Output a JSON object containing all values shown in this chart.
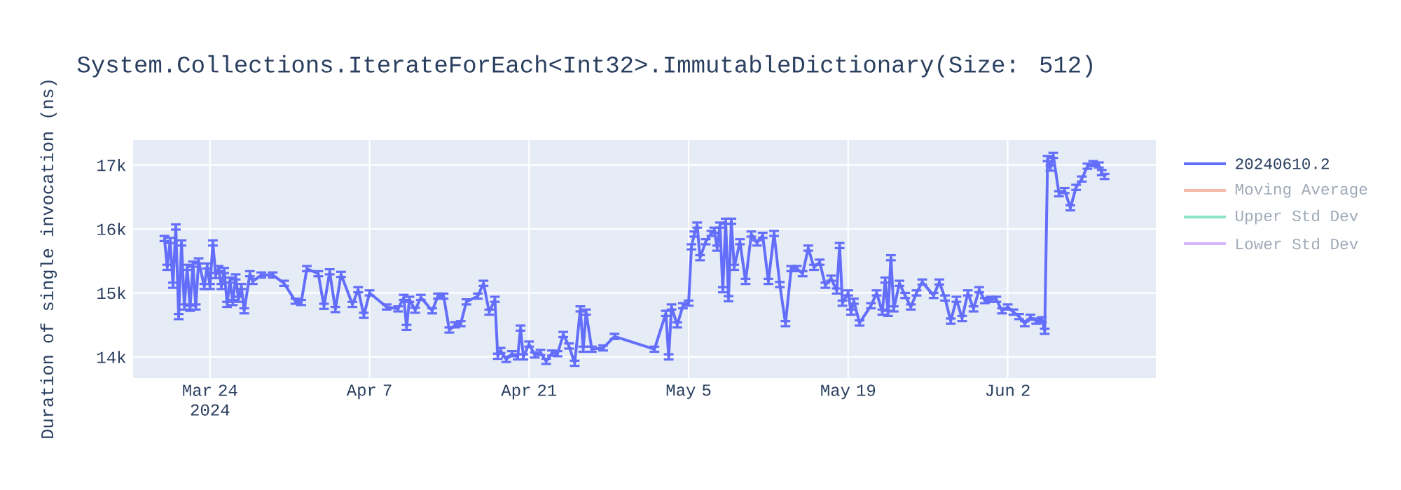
{
  "chart_data": {
    "type": "line",
    "title": "System.Collections.IterateForEach<Int32>.ImmutableDictionary(Size: 512)",
    "ylabel": "Duration of single invocation (ns)",
    "xlim": [
      "2024-03-17T06:00",
      "2024-06-15T00:00"
    ],
    "ylim": [
      13670,
      17390
    ],
    "xticks": [
      {
        "value": "2024-03-24",
        "label": "Mar 24 2024"
      },
      {
        "value": "2024-04-07",
        "label": "Apr 7"
      },
      {
        "value": "2024-04-21",
        "label": "Apr 21"
      },
      {
        "value": "2024-05-05",
        "label": "May 5"
      },
      {
        "value": "2024-05-19",
        "label": "May 19"
      },
      {
        "value": "2024-06-02",
        "label": "Jun 2"
      }
    ],
    "yticks": [
      {
        "value": 14000,
        "label": "14k"
      },
      {
        "value": 15000,
        "label": "15k"
      },
      {
        "value": 16000,
        "label": "16k"
      },
      {
        "value": 17000,
        "label": "17k"
      }
    ],
    "grid": true,
    "legend": "right",
    "marker": "none",
    "line_style": "solid",
    "x": [
      "2024-03-20T00:00",
      "2024-03-20T06:00",
      "2024-03-20T12:00",
      "2024-03-20T18:00",
      "2024-03-21T00:00",
      "2024-03-21T06:00",
      "2024-03-21T12:00",
      "2024-03-21T18:00",
      "2024-03-22T00:00",
      "2024-03-22T06:00",
      "2024-03-22T12:00",
      "2024-03-22T18:00",
      "2024-03-23T00:00",
      "2024-03-23T12:00",
      "2024-03-23T18:00",
      "2024-03-24T00:00",
      "2024-03-24T06:00",
      "2024-03-24T12:00",
      "2024-03-24T18:00",
      "2024-03-25T00:00",
      "2024-03-25T06:00",
      "2024-03-25T12:00",
      "2024-03-25T18:00",
      "2024-03-26T00:00",
      "2024-03-26T06:00",
      "2024-03-26T12:00",
      "2024-03-26T18:00",
      "2024-03-27T00:00",
      "2024-03-27T12:00",
      "2024-03-27T18:00",
      "2024-03-28T12:00",
      "2024-03-29T12:00",
      "2024-03-30T12:00",
      "2024-03-31T12:00",
      "2024-04-01T00:00",
      "2024-04-01T12:00",
      "2024-04-02T12:00",
      "2024-04-03T00:00",
      "2024-04-03T12:00",
      "2024-04-04T00:00",
      "2024-04-04T12:00",
      "2024-04-05T12:00",
      "2024-04-06T00:00",
      "2024-04-06T12:00",
      "2024-04-07T00:00",
      "2024-04-08T12:00",
      "2024-04-09T12:00",
      "2024-04-10T00:00",
      "2024-04-10T06:00",
      "2024-04-10T12:00",
      "2024-04-11T00:00",
      "2024-04-11T12:00",
      "2024-04-12T12:00",
      "2024-04-13T00:00",
      "2024-04-13T12:00",
      "2024-04-14T00:00",
      "2024-04-14T12:00",
      "2024-04-15T00:00",
      "2024-04-15T12:00",
      "2024-04-16T12:00",
      "2024-04-17T00:00",
      "2024-04-17T12:00",
      "2024-04-18T00:00",
      "2024-04-18T06:00",
      "2024-04-18T12:00",
      "2024-04-19T00:00",
      "2024-04-19T12:00",
      "2024-04-20T00:00",
      "2024-04-20T06:00",
      "2024-04-20T12:00",
      "2024-04-21T00:00",
      "2024-04-21T12:00",
      "2024-04-22T00:00",
      "2024-04-22T12:00",
      "2024-04-23T00:00",
      "2024-04-23T12:00",
      "2024-04-24T00:00",
      "2024-04-24T12:00",
      "2024-04-25T00:00",
      "2024-04-25T12:00",
      "2024-04-25T18:00",
      "2024-04-26T00:00",
      "2024-04-26T12:00",
      "2024-04-27T12:00",
      "2024-04-28T12:00",
      "2024-05-02T00:00",
      "2024-05-03T00:00",
      "2024-05-03T06:00",
      "2024-05-03T12:00",
      "2024-05-04T00:00",
      "2024-05-04T12:00",
      "2024-05-05T00:00",
      "2024-05-05T06:00",
      "2024-05-05T12:00",
      "2024-05-05T18:00",
      "2024-05-06T00:00",
      "2024-05-06T12:00",
      "2024-05-07T00:00",
      "2024-05-07T06:00",
      "2024-05-07T12:00",
      "2024-05-07T18:00",
      "2024-05-08T00:00",
      "2024-05-08T06:00",
      "2024-05-08T12:00",
      "2024-05-08T18:00",
      "2024-05-09T00:00",
      "2024-05-09T12:00",
      "2024-05-10T00:00",
      "2024-05-10T12:00",
      "2024-05-11T00:00",
      "2024-05-11T12:00",
      "2024-05-12T00:00",
      "2024-05-12T12:00",
      "2024-05-13T00:00",
      "2024-05-13T12:00",
      "2024-05-14T00:00",
      "2024-05-14T12:00",
      "2024-05-15T00:00",
      "2024-05-15T12:00",
      "2024-05-16T00:00",
      "2024-05-16T12:00",
      "2024-05-17T00:00",
      "2024-05-17T12:00",
      "2024-05-18T00:00",
      "2024-05-18T06:00",
      "2024-05-18T12:00",
      "2024-05-19T00:00",
      "2024-05-19T06:00",
      "2024-05-19T12:00",
      "2024-05-20T00:00",
      "2024-05-21T00:00",
      "2024-05-21T12:00",
      "2024-05-22T00:00",
      "2024-05-22T06:00",
      "2024-05-22T12:00",
      "2024-05-22T18:00",
      "2024-05-23T00:00",
      "2024-05-23T12:00",
      "2024-05-24T00:00",
      "2024-05-24T12:00",
      "2024-05-25T00:00",
      "2024-05-25T12:00",
      "2024-05-26T12:00",
      "2024-05-27T00:00",
      "2024-05-27T12:00",
      "2024-05-28T00:00",
      "2024-05-28T12:00",
      "2024-05-29T00:00",
      "2024-05-29T12:00",
      "2024-05-30T00:00",
      "2024-05-30T12:00",
      "2024-05-31T00:00",
      "2024-05-31T12:00",
      "2024-06-01T00:00",
      "2024-06-01T12:00",
      "2024-06-02T00:00",
      "2024-06-02T12:00",
      "2024-06-03T00:00",
      "2024-06-03T12:00",
      "2024-06-04T00:00",
      "2024-06-04T12:00",
      "2024-06-05T00:00",
      "2024-06-05T06:00",
      "2024-06-05T12:00",
      "2024-06-05T18:00",
      "2024-06-06T00:00",
      "2024-06-06T12:00",
      "2024-06-07T00:00",
      "2024-06-07T12:00",
      "2024-06-08T00:00",
      "2024-06-08T12:00",
      "2024-06-09T00:00",
      "2024-06-09T12:00",
      "2024-06-10T00:00",
      "2024-06-10T06:00",
      "2024-06-10T12:00"
    ],
    "series": [
      {
        "name": "20240610.2",
        "color": "#636efa",
        "values": [
          15850,
          15400,
          15820,
          15120,
          16030,
          14630,
          15780,
          14780,
          15400,
          14760,
          15450,
          14780,
          15500,
          15100,
          15420,
          15100,
          15780,
          15270,
          15380,
          15100,
          15350,
          14820,
          15200,
          14850,
          15250,
          14900,
          15100,
          14720,
          15300,
          15180,
          15280,
          15280,
          15150,
          14870,
          14850,
          15380,
          15300,
          14790,
          15330,
          14740,
          15290,
          14820,
          15050,
          14650,
          15000,
          14780,
          14750,
          14930,
          14460,
          14900,
          14730,
          14930,
          14720,
          14950,
          14950,
          14420,
          14500,
          14520,
          14860,
          14950,
          15150,
          14700,
          14900,
          14010,
          14100,
          13960,
          14050,
          14000,
          14450,
          14000,
          14200,
          14030,
          14070,
          13930,
          14060,
          14050,
          14350,
          14170,
          13900,
          14750,
          14120,
          14700,
          14120,
          14140,
          14320,
          14120,
          14680,
          14000,
          14780,
          14500,
          14800,
          14840,
          15720,
          15920,
          16060,
          15550,
          15800,
          15930,
          15980,
          15700,
          16060,
          15050,
          16120,
          14910,
          16120,
          15400,
          15800,
          15180,
          15920,
          15780,
          15900,
          15180,
          15930,
          15130,
          14520,
          15380,
          15380,
          15300,
          15700,
          15400,
          15480,
          15120,
          15230,
          15030,
          15740,
          14840,
          15000,
          14700,
          14870,
          14530,
          14800,
          15000,
          14700,
          15200,
          14680,
          15550,
          14750,
          15150,
          14960,
          14780,
          15000,
          15170,
          14960,
          15170,
          14920,
          14560,
          14900,
          14600,
          15000,
          14750,
          15050,
          14880,
          14900,
          14900,
          14720,
          14780,
          14700,
          14630,
          14520,
          14620,
          14560,
          14580,
          14400,
          17100,
          16950,
          17150,
          16550,
          16600,
          16330,
          16650,
          16780,
          16980,
          17020,
          17000,
          16880,
          16820
        ],
        "errors": [
          40,
          40,
          40,
          40,
          40,
          40,
          40,
          40,
          40,
          40,
          40,
          40,
          40,
          40,
          40,
          40,
          40,
          40,
          40,
          40,
          40,
          40,
          40,
          40,
          40,
          40,
          40,
          40,
          40,
          40,
          40,
          40,
          40,
          40,
          40,
          40,
          40,
          40,
          40,
          40,
          40,
          40,
          40,
          40,
          40,
          40,
          40,
          40,
          40,
          40,
          40,
          40,
          40,
          40,
          40,
          40,
          40,
          40,
          40,
          40,
          40,
          40,
          40,
          40,
          40,
          40,
          40,
          40,
          40,
          40,
          40,
          40,
          40,
          40,
          40,
          40,
          40,
          40,
          40,
          40,
          40,
          40,
          40,
          40,
          40,
          40,
          40,
          40,
          40,
          40,
          40,
          40,
          40,
          40,
          40,
          40,
          40,
          40,
          40,
          40,
          40,
          40,
          40,
          40,
          40,
          40,
          40,
          40,
          40,
          40,
          40,
          40,
          40,
          40,
          40,
          40,
          40,
          40,
          40,
          40,
          40,
          40,
          40,
          40,
          40,
          40,
          40,
          40,
          40,
          40,
          40,
          40,
          40,
          40,
          40,
          40,
          40,
          40,
          40,
          40,
          40,
          40,
          40,
          40,
          40,
          40,
          40,
          40,
          40,
          40,
          40,
          40,
          40,
          40,
          40,
          40,
          40,
          40,
          40,
          40,
          40,
          40,
          40,
          40,
          40,
          40,
          40,
          40,
          40,
          40,
          40,
          40,
          40,
          40,
          40,
          40
        ]
      },
      {
        "name": "Moving Average",
        "color": "#f7b8a9",
        "values": [
          null,
          null,
          null,
          null,
          null,
          null,
          null,
          null,
          null,
          null,
          null,
          null,
          null,
          null,
          null,
          null,
          null,
          null,
          null,
          null,
          null,
          null,
          null,
          null,
          null,
          null,
          null,
          null,
          null,
          null,
          null,
          null,
          null,
          null,
          null,
          null,
          null,
          null,
          null,
          null,
          null,
          null,
          null,
          null,
          null,
          null,
          null,
          null,
          null,
          null,
          null,
          null,
          null,
          null,
          null,
          null,
          null,
          null,
          null,
          null,
          null,
          null,
          null,
          null,
          null,
          null,
          null,
          null,
          null,
          null,
          null,
          null,
          null,
          null,
          null,
          null,
          null,
          null,
          null,
          null,
          null,
          null,
          null,
          null,
          null,
          null,
          null,
          null,
          null,
          null,
          null,
          null,
          null,
          null,
          null,
          null,
          null,
          null,
          null,
          null,
          null,
          null,
          null,
          null,
          null,
          null,
          null,
          null,
          null,
          null,
          null,
          null,
          null,
          null,
          null,
          null,
          null,
          null,
          null,
          null,
          null,
          null,
          null,
          null,
          null,
          null,
          null,
          null,
          null,
          null,
          null,
          null,
          null,
          null,
          null,
          null,
          null,
          null,
          null,
          null,
          null,
          null,
          null,
          null,
          null,
          null,
          null,
          null,
          null,
          null,
          null,
          null,
          null,
          null,
          null,
          null,
          null,
          null,
          null,
          null,
          null,
          null,
          null,
          null,
          null,
          null,
          null,
          null,
          null,
          null,
          null,
          null,
          null,
          null,
          null,
          null
        ]
      },
      {
        "name": "Upper Std Dev",
        "color": "#8be4c8",
        "values": [
          null,
          null,
          null,
          null,
          null,
          null,
          null,
          null,
          null,
          null,
          null,
          null,
          null,
          null,
          null,
          null,
          null,
          null,
          null,
          null,
          null,
          null,
          null,
          null,
          null,
          null,
          null,
          null,
          null,
          null,
          null,
          null,
          null,
          null,
          null,
          null,
          null,
          null,
          null,
          null,
          null,
          null,
          null,
          null,
          null,
          null,
          null,
          null,
          null,
          null,
          null,
          null,
          null,
          null,
          null,
          null,
          null,
          null,
          null,
          null,
          null,
          null,
          null,
          null,
          null,
          null,
          null,
          null,
          null,
          null,
          null,
          null,
          null,
          null,
          null,
          null,
          null,
          null,
          null,
          null,
          null,
          null,
          null,
          null,
          null,
          null,
          null,
          null,
          null,
          null,
          null,
          null,
          null,
          null,
          null,
          null,
          null,
          null,
          null,
          null,
          null,
          null,
          null,
          null,
          null,
          null,
          null,
          null,
          null,
          null,
          null,
          null,
          null,
          null,
          null,
          null,
          null,
          null,
          null,
          null,
          null,
          null,
          null,
          null,
          null,
          null,
          null,
          null,
          null,
          null,
          null,
          null,
          null,
          null,
          null,
          null,
          null,
          null,
          null,
          null,
          null,
          null,
          null,
          null,
          null,
          null,
          null,
          null,
          null,
          null,
          null,
          null,
          null,
          null,
          null,
          null,
          null,
          null,
          null,
          null,
          null,
          null,
          null,
          null,
          null,
          null,
          null,
          null,
          null,
          null,
          null,
          null,
          null,
          null,
          null,
          null
        ]
      },
      {
        "name": "Lower Std Dev",
        "color": "#d5b7fb",
        "values": [
          null,
          null,
          null,
          null,
          null,
          null,
          null,
          null,
          null,
          null,
          null,
          null,
          null,
          null,
          null,
          null,
          null,
          null,
          null,
          null,
          null,
          null,
          null,
          null,
          null,
          null,
          null,
          null,
          null,
          null,
          null,
          null,
          null,
          null,
          null,
          null,
          null,
          null,
          null,
          null,
          null,
          null,
          null,
          null,
          null,
          null,
          null,
          null,
          null,
          null,
          null,
          null,
          null,
          null,
          null,
          null,
          null,
          null,
          null,
          null,
          null,
          null,
          null,
          null,
          null,
          null,
          null,
          null,
          null,
          null,
          null,
          null,
          null,
          null,
          null,
          null,
          null,
          null,
          null,
          null,
          null,
          null,
          null,
          null,
          null,
          null,
          null,
          null,
          null,
          null,
          null,
          null,
          null,
          null,
          null,
          null,
          null,
          null,
          null,
          null,
          null,
          null,
          null,
          null,
          null,
          null,
          null,
          null,
          null,
          null,
          null,
          null,
          null,
          null,
          null,
          null,
          null,
          null,
          null,
          null,
          null,
          null,
          null,
          null,
          null,
          null,
          null,
          null,
          null,
          null,
          null,
          null,
          null,
          null,
          null,
          null,
          null,
          null,
          null,
          null,
          null,
          null,
          null,
          null,
          null,
          null,
          null,
          null,
          null,
          null,
          null,
          null,
          null,
          null,
          null,
          null,
          null,
          null,
          null,
          null,
          null,
          null,
          null,
          null,
          null,
          null,
          null,
          null,
          null,
          null,
          null,
          null,
          null,
          null,
          null,
          null
        ]
      }
    ]
  }
}
